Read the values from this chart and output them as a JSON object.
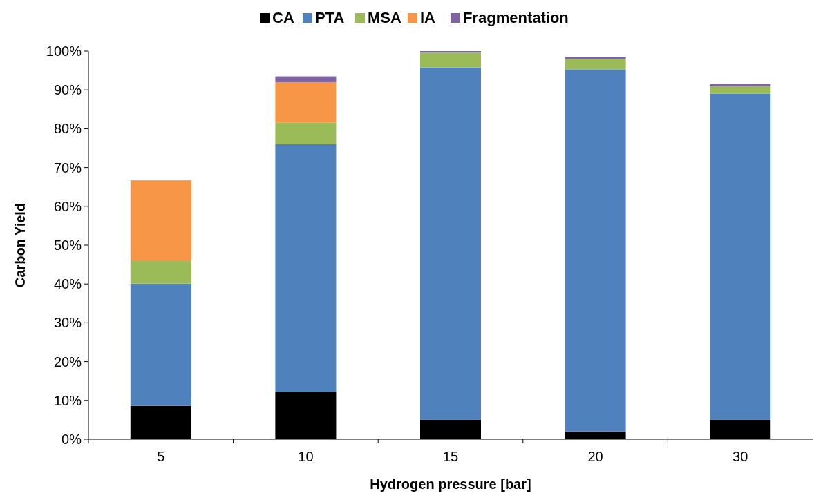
{
  "chart_data": {
    "type": "bar",
    "stacked": true,
    "xlabel": "Hydrogen pressure [bar]",
    "ylabel": "Carbon Yield",
    "categories": [
      "5",
      "10",
      "15",
      "20",
      "30"
    ],
    "series": [
      {
        "name": "CA",
        "color": "#000000",
        "values": [
          8.6,
          12.1,
          5,
          2,
          5
        ]
      },
      {
        "name": "PTA",
        "color": "#4f81bd",
        "values": [
          31.5,
          63.9,
          90.8,
          93.3,
          84
        ]
      },
      {
        "name": "MSA",
        "color": "#9bbb59",
        "values": [
          5.8,
          5.6,
          3.8,
          2.7,
          2
        ]
      },
      {
        "name": "IA",
        "color": "#f79646",
        "values": [
          20.8,
          10.4,
          0,
          0,
          0
        ]
      },
      {
        "name": "Fragmentation",
        "color": "#8064a2",
        "values": [
          0,
          1.5,
          0.4,
          0.5,
          0.5
        ]
      }
    ],
    "ylim": [
      0,
      100
    ],
    "yticks": [
      {
        "value": 0,
        "label": "0%"
      },
      {
        "value": 10,
        "label": "10%"
      },
      {
        "value": 20,
        "label": "20%"
      },
      {
        "value": 30,
        "label": "30%"
      },
      {
        "value": 40,
        "label": "40%"
      },
      {
        "value": 50,
        "label": "50%"
      },
      {
        "value": 60,
        "label": "60%"
      },
      {
        "value": 70,
        "label": "70%"
      },
      {
        "value": 80,
        "label": "80%"
      },
      {
        "value": 90,
        "label": "90%"
      },
      {
        "value": 100,
        "label": "100%"
      }
    ],
    "legend": "top",
    "grid": false
  }
}
